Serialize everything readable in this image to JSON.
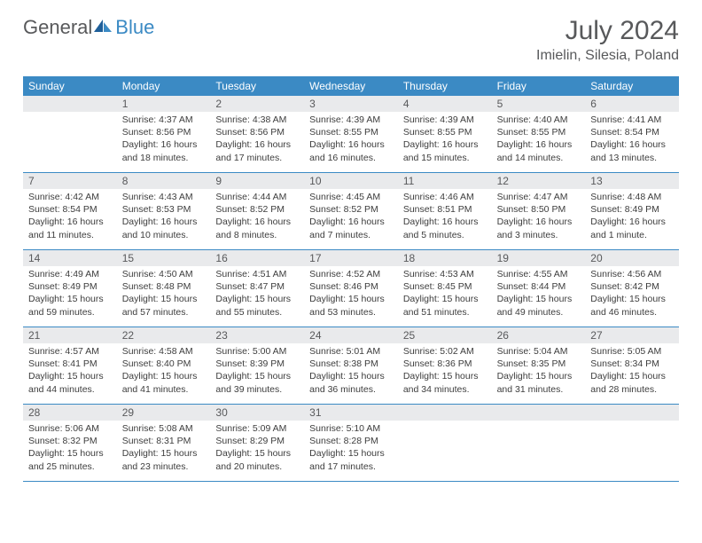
{
  "brand": {
    "part1": "General",
    "part2": "Blue"
  },
  "title": {
    "month": "July 2024",
    "location": "Imielin, Silesia, Poland"
  },
  "colors": {
    "accent": "#3b8ac4",
    "brand_gray": "#58595b",
    "daynum_bg": "#e9eaec",
    "text": "#3d3d3d",
    "background": "#ffffff"
  },
  "typography": {
    "title_fontsize": 30,
    "location_fontsize": 16,
    "dow_fontsize": 12,
    "daynum_fontsize": 12,
    "body_fontsize": 10.5,
    "font_family": "Arial"
  },
  "days_of_week": [
    "Sunday",
    "Monday",
    "Tuesday",
    "Wednesday",
    "Thursday",
    "Friday",
    "Saturday"
  ],
  "weeks": [
    [
      {
        "num": "",
        "sunrise": "",
        "sunset": "",
        "daylight": ""
      },
      {
        "num": "1",
        "sunrise": "Sunrise: 4:37 AM",
        "sunset": "Sunset: 8:56 PM",
        "daylight": "Daylight: 16 hours and 18 minutes."
      },
      {
        "num": "2",
        "sunrise": "Sunrise: 4:38 AM",
        "sunset": "Sunset: 8:56 PM",
        "daylight": "Daylight: 16 hours and 17 minutes."
      },
      {
        "num": "3",
        "sunrise": "Sunrise: 4:39 AM",
        "sunset": "Sunset: 8:55 PM",
        "daylight": "Daylight: 16 hours and 16 minutes."
      },
      {
        "num": "4",
        "sunrise": "Sunrise: 4:39 AM",
        "sunset": "Sunset: 8:55 PM",
        "daylight": "Daylight: 16 hours and 15 minutes."
      },
      {
        "num": "5",
        "sunrise": "Sunrise: 4:40 AM",
        "sunset": "Sunset: 8:55 PM",
        "daylight": "Daylight: 16 hours and 14 minutes."
      },
      {
        "num": "6",
        "sunrise": "Sunrise: 4:41 AM",
        "sunset": "Sunset: 8:54 PM",
        "daylight": "Daylight: 16 hours and 13 minutes."
      }
    ],
    [
      {
        "num": "7",
        "sunrise": "Sunrise: 4:42 AM",
        "sunset": "Sunset: 8:54 PM",
        "daylight": "Daylight: 16 hours and 11 minutes."
      },
      {
        "num": "8",
        "sunrise": "Sunrise: 4:43 AM",
        "sunset": "Sunset: 8:53 PM",
        "daylight": "Daylight: 16 hours and 10 minutes."
      },
      {
        "num": "9",
        "sunrise": "Sunrise: 4:44 AM",
        "sunset": "Sunset: 8:52 PM",
        "daylight": "Daylight: 16 hours and 8 minutes."
      },
      {
        "num": "10",
        "sunrise": "Sunrise: 4:45 AM",
        "sunset": "Sunset: 8:52 PM",
        "daylight": "Daylight: 16 hours and 7 minutes."
      },
      {
        "num": "11",
        "sunrise": "Sunrise: 4:46 AM",
        "sunset": "Sunset: 8:51 PM",
        "daylight": "Daylight: 16 hours and 5 minutes."
      },
      {
        "num": "12",
        "sunrise": "Sunrise: 4:47 AM",
        "sunset": "Sunset: 8:50 PM",
        "daylight": "Daylight: 16 hours and 3 minutes."
      },
      {
        "num": "13",
        "sunrise": "Sunrise: 4:48 AM",
        "sunset": "Sunset: 8:49 PM",
        "daylight": "Daylight: 16 hours and 1 minute."
      }
    ],
    [
      {
        "num": "14",
        "sunrise": "Sunrise: 4:49 AM",
        "sunset": "Sunset: 8:49 PM",
        "daylight": "Daylight: 15 hours and 59 minutes."
      },
      {
        "num": "15",
        "sunrise": "Sunrise: 4:50 AM",
        "sunset": "Sunset: 8:48 PM",
        "daylight": "Daylight: 15 hours and 57 minutes."
      },
      {
        "num": "16",
        "sunrise": "Sunrise: 4:51 AM",
        "sunset": "Sunset: 8:47 PM",
        "daylight": "Daylight: 15 hours and 55 minutes."
      },
      {
        "num": "17",
        "sunrise": "Sunrise: 4:52 AM",
        "sunset": "Sunset: 8:46 PM",
        "daylight": "Daylight: 15 hours and 53 minutes."
      },
      {
        "num": "18",
        "sunrise": "Sunrise: 4:53 AM",
        "sunset": "Sunset: 8:45 PM",
        "daylight": "Daylight: 15 hours and 51 minutes."
      },
      {
        "num": "19",
        "sunrise": "Sunrise: 4:55 AM",
        "sunset": "Sunset: 8:44 PM",
        "daylight": "Daylight: 15 hours and 49 minutes."
      },
      {
        "num": "20",
        "sunrise": "Sunrise: 4:56 AM",
        "sunset": "Sunset: 8:42 PM",
        "daylight": "Daylight: 15 hours and 46 minutes."
      }
    ],
    [
      {
        "num": "21",
        "sunrise": "Sunrise: 4:57 AM",
        "sunset": "Sunset: 8:41 PM",
        "daylight": "Daylight: 15 hours and 44 minutes."
      },
      {
        "num": "22",
        "sunrise": "Sunrise: 4:58 AM",
        "sunset": "Sunset: 8:40 PM",
        "daylight": "Daylight: 15 hours and 41 minutes."
      },
      {
        "num": "23",
        "sunrise": "Sunrise: 5:00 AM",
        "sunset": "Sunset: 8:39 PM",
        "daylight": "Daylight: 15 hours and 39 minutes."
      },
      {
        "num": "24",
        "sunrise": "Sunrise: 5:01 AM",
        "sunset": "Sunset: 8:38 PM",
        "daylight": "Daylight: 15 hours and 36 minutes."
      },
      {
        "num": "25",
        "sunrise": "Sunrise: 5:02 AM",
        "sunset": "Sunset: 8:36 PM",
        "daylight": "Daylight: 15 hours and 34 minutes."
      },
      {
        "num": "26",
        "sunrise": "Sunrise: 5:04 AM",
        "sunset": "Sunset: 8:35 PM",
        "daylight": "Daylight: 15 hours and 31 minutes."
      },
      {
        "num": "27",
        "sunrise": "Sunrise: 5:05 AM",
        "sunset": "Sunset: 8:34 PM",
        "daylight": "Daylight: 15 hours and 28 minutes."
      }
    ],
    [
      {
        "num": "28",
        "sunrise": "Sunrise: 5:06 AM",
        "sunset": "Sunset: 8:32 PM",
        "daylight": "Daylight: 15 hours and 25 minutes."
      },
      {
        "num": "29",
        "sunrise": "Sunrise: 5:08 AM",
        "sunset": "Sunset: 8:31 PM",
        "daylight": "Daylight: 15 hours and 23 minutes."
      },
      {
        "num": "30",
        "sunrise": "Sunrise: 5:09 AM",
        "sunset": "Sunset: 8:29 PM",
        "daylight": "Daylight: 15 hours and 20 minutes."
      },
      {
        "num": "31",
        "sunrise": "Sunrise: 5:10 AM",
        "sunset": "Sunset: 8:28 PM",
        "daylight": "Daylight: 15 hours and 17 minutes."
      },
      {
        "num": "",
        "sunrise": "",
        "sunset": "",
        "daylight": ""
      },
      {
        "num": "",
        "sunrise": "",
        "sunset": "",
        "daylight": ""
      },
      {
        "num": "",
        "sunrise": "",
        "sunset": "",
        "daylight": ""
      }
    ]
  ]
}
